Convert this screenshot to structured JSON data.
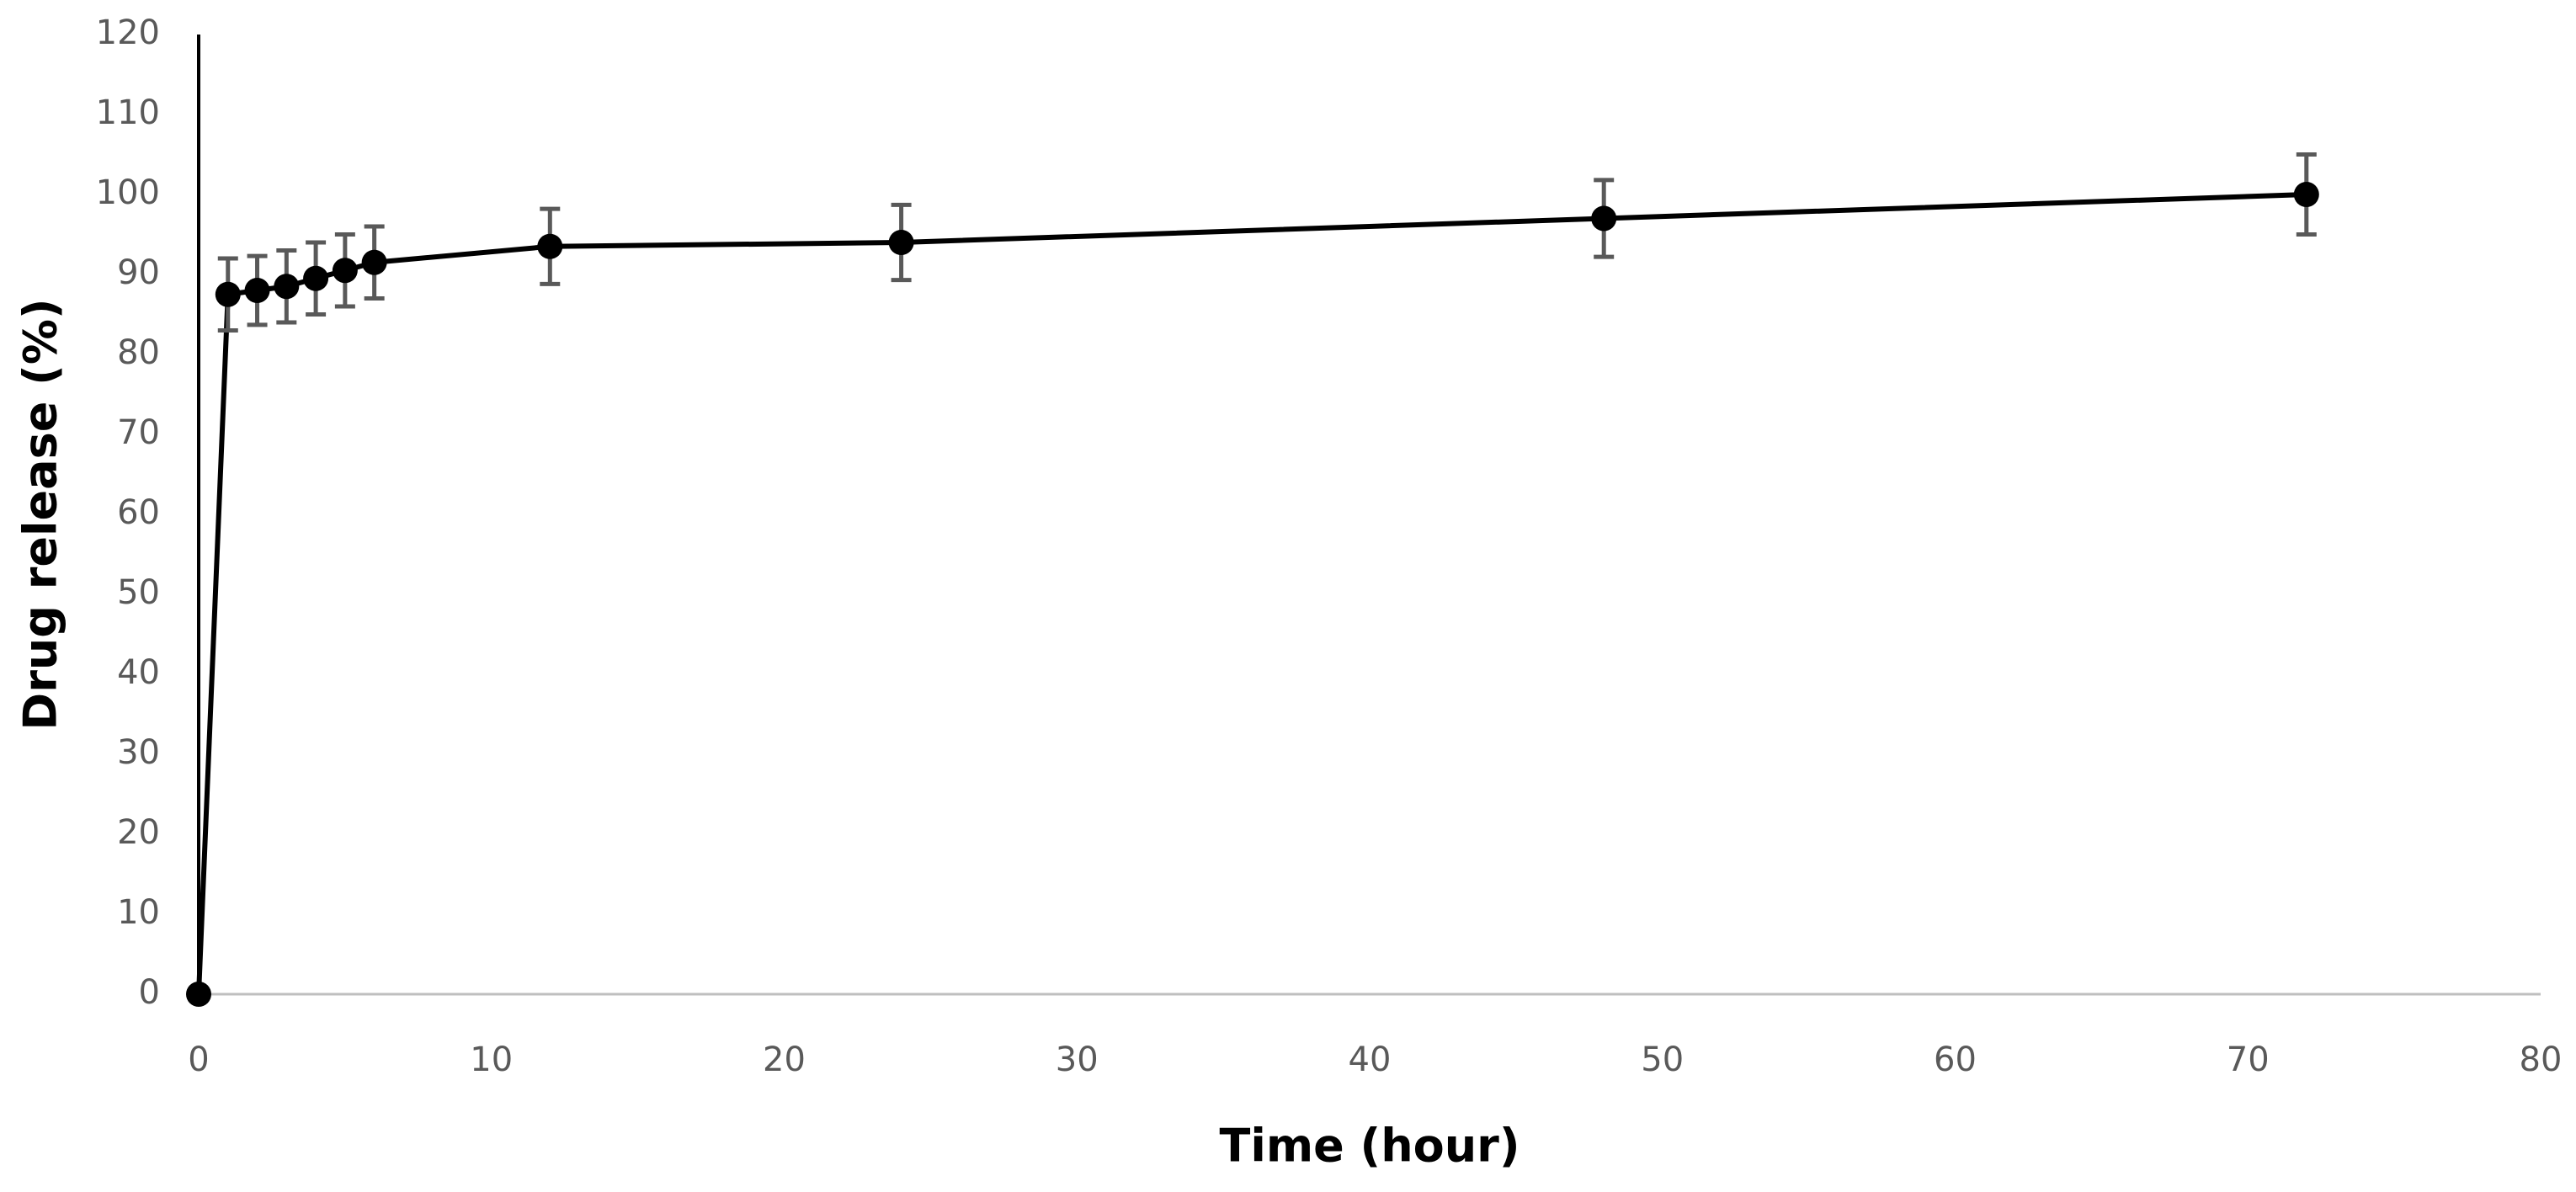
{
  "chart_data": {
    "type": "line",
    "x_label": "Time (hour)",
    "y_label": "Drug release (%)",
    "x": [
      0,
      1,
      2,
      3,
      4,
      5,
      6,
      12,
      24,
      48,
      72
    ],
    "series": [
      {
        "color": "#000000",
        "values": [
          0,
          87.5,
          88,
          88.5,
          89.5,
          90.5,
          91.5,
          93.5,
          94,
          97,
          100
        ],
        "errors": [
          0,
          4.5,
          4.3,
          4.5,
          4.5,
          4.5,
          4.5,
          4.7,
          4.7,
          4.8,
          5
        ]
      }
    ],
    "xlim": [
      0,
      80
    ],
    "xticks": [
      0,
      10,
      20,
      30,
      40,
      50,
      60,
      70,
      80
    ],
    "ylim": [
      0,
      120
    ],
    "yticks": [
      0,
      10,
      20,
      30,
      40,
      50,
      60,
      70,
      80,
      90,
      100,
      110,
      120
    ],
    "grid": false
  }
}
